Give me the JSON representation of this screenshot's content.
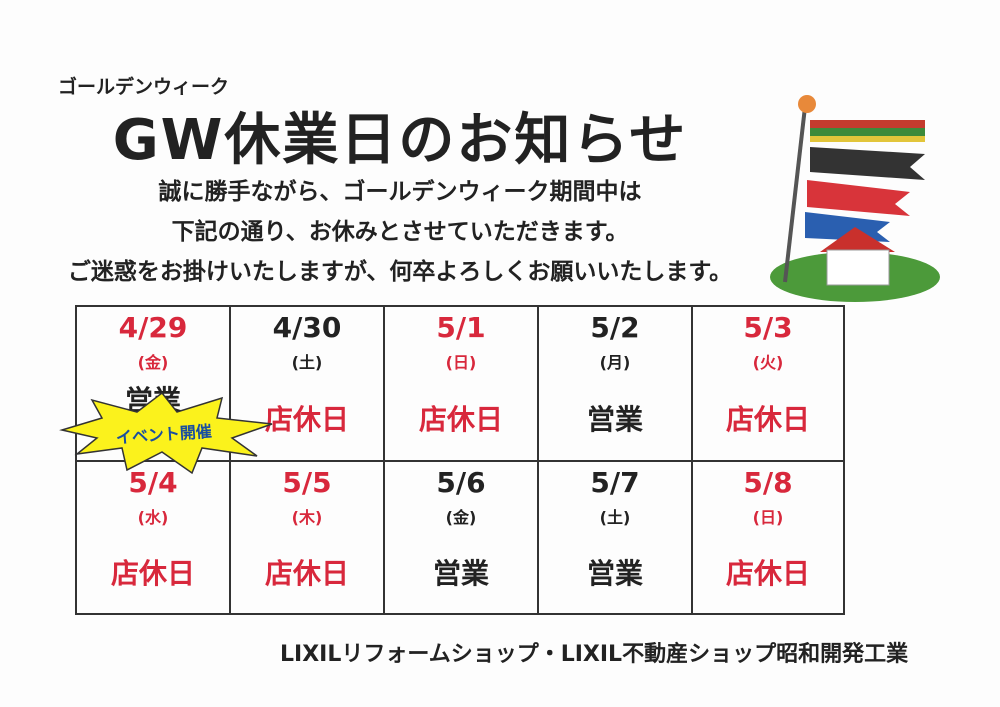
{
  "header": {
    "ruby": "ゴールデンウィーク",
    "title": "GW休業日のお知らせ"
  },
  "message": [
    "誠に勝手ながら、ゴールデンウィーク期間中は",
    "下記の通り、お休みとさせていただきます。",
    "ご迷惑をお掛けいたしますが、何卒よろしくお願いいたします。"
  ],
  "calendar": {
    "days": [
      {
        "date": "4/29",
        "weekday": "(金)",
        "status": "営業",
        "date_color": "#d8283c",
        "status_color": "#222222"
      },
      {
        "date": "4/30",
        "weekday": "(土)",
        "status": "店休日",
        "date_color": "#222222",
        "status_color": "#d8283c"
      },
      {
        "date": "5/1",
        "weekday": "(日)",
        "status": "店休日",
        "date_color": "#d8283c",
        "status_color": "#d8283c"
      },
      {
        "date": "5/2",
        "weekday": "(月)",
        "status": "営業",
        "date_color": "#222222",
        "status_color": "#222222"
      },
      {
        "date": "5/3",
        "weekday": "(火)",
        "status": "店休日",
        "date_color": "#d8283c",
        "status_color": "#d8283c"
      },
      {
        "date": "5/4",
        "weekday": "(水)",
        "status": "店休日",
        "date_color": "#d8283c",
        "status_color": "#d8283c"
      },
      {
        "date": "5/5",
        "weekday": "(木)",
        "status": "店休日",
        "date_color": "#d8283c",
        "status_color": "#d8283c"
      },
      {
        "date": "5/6",
        "weekday": "(金)",
        "status": "営業",
        "date_color": "#222222",
        "status_color": "#222222"
      },
      {
        "date": "5/7",
        "weekday": "(土)",
        "status": "営業",
        "date_color": "#222222",
        "status_color": "#222222"
      },
      {
        "date": "5/8",
        "weekday": "(日)",
        "status": "店休日",
        "date_color": "#d8283c",
        "status_color": "#d8283c"
      }
    ],
    "event_badge": "イベント開催"
  },
  "footer": "LIXILリフォームショップ・LIXIL不動産ショップ昭和開発工業"
}
